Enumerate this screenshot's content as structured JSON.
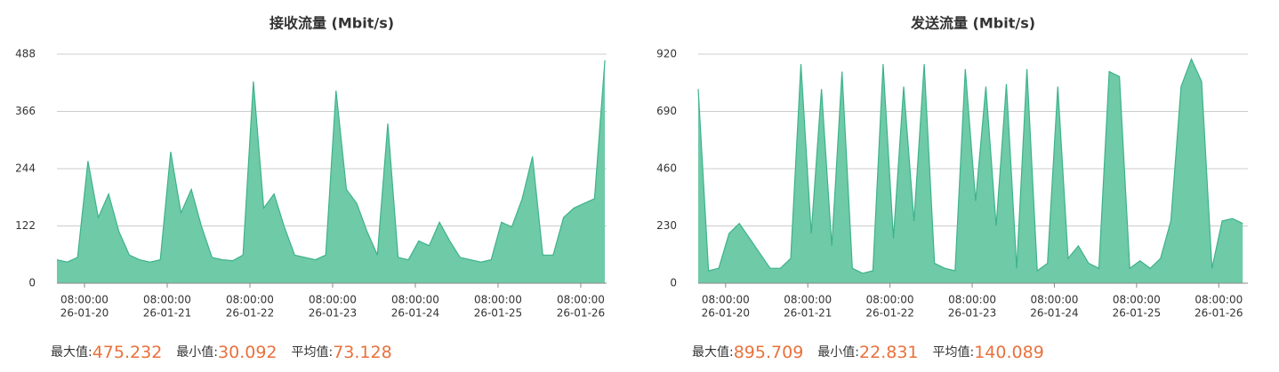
{
  "chart_data": [
    {
      "type": "area",
      "title": "接收流量 (Mbit/s)",
      "color": "#3db38a",
      "fill_color": "#6fcaa8",
      "x": [
        "26-01-20 00:00:00",
        "26-01-20 03:00:00",
        "26-01-20 06:00:00",
        "26-01-20 09:00:00",
        "26-01-20 12:00:00",
        "26-01-20 15:00:00",
        "26-01-20 18:00:00",
        "26-01-20 21:00:00",
        "26-01-21 00:00:00",
        "26-01-21 03:00:00",
        "26-01-21 06:00:00",
        "26-01-21 09:00:00",
        "26-01-21 12:00:00",
        "26-01-21 15:00:00",
        "26-01-21 18:00:00",
        "26-01-21 21:00:00",
        "26-01-22 00:00:00",
        "26-01-22 03:00:00",
        "26-01-22 06:00:00",
        "26-01-22 09:00:00",
        "26-01-22 12:00:00",
        "26-01-22 15:00:00",
        "26-01-22 18:00:00",
        "26-01-22 21:00:00",
        "26-01-23 00:00:00",
        "26-01-23 03:00:00",
        "26-01-23 06:00:00",
        "26-01-23 09:00:00",
        "26-01-23 12:00:00",
        "26-01-23 15:00:00",
        "26-01-23 18:00:00",
        "26-01-23 21:00:00",
        "26-01-24 00:00:00",
        "26-01-24 03:00:00",
        "26-01-24 06:00:00",
        "26-01-24 09:00:00",
        "26-01-24 12:00:00",
        "26-01-24 15:00:00",
        "26-01-24 18:00:00",
        "26-01-24 21:00:00",
        "26-01-25 00:00:00",
        "26-01-25 03:00:00",
        "26-01-25 06:00:00",
        "26-01-25 09:00:00",
        "26-01-25 12:00:00",
        "26-01-25 15:00:00",
        "26-01-25 18:00:00",
        "26-01-25 21:00:00",
        "26-01-26 00:00:00",
        "26-01-26 03:00:00",
        "26-01-26 06:00:00",
        "26-01-26 09:00:00",
        "26-01-26 12:00:00",
        "26-01-26 15:00:00"
      ],
      "values": [
        50,
        45,
        55,
        260,
        140,
        190,
        110,
        60,
        50,
        45,
        50,
        280,
        150,
        200,
        120,
        55,
        50,
        48,
        60,
        430,
        160,
        190,
        120,
        60,
        55,
        50,
        60,
        410,
        200,
        170,
        110,
        60,
        340,
        55,
        50,
        90,
        80,
        130,
        90,
        55,
        50,
        45,
        50,
        130,
        120,
        180,
        270,
        60,
        60,
        140,
        160,
        170,
        180,
        475
      ],
      "xlim": [
        "26-01-20 00:00:00",
        "26-01-26 15:30:00"
      ],
      "xticks": [
        {
          "value": "26-01-20 08:00:00",
          "label": [
            "08:00:00",
            "26-01-20"
          ]
        },
        {
          "value": "26-01-21 08:00:00",
          "label": [
            "08:00:00",
            "26-01-21"
          ]
        },
        {
          "value": "26-01-22 08:00:00",
          "label": [
            "08:00:00",
            "26-01-22"
          ]
        },
        {
          "value": "26-01-23 08:00:00",
          "label": [
            "08:00:00",
            "26-01-23"
          ]
        },
        {
          "value": "26-01-24 08:00:00",
          "label": [
            "08:00:00",
            "26-01-24"
          ]
        },
        {
          "value": "26-01-25 08:00:00",
          "label": [
            "08:00:00",
            "26-01-25"
          ]
        },
        {
          "value": "26-01-26 08:00:00",
          "label": [
            "08:00:00",
            "26-01-26"
          ]
        }
      ],
      "ylim": [
        0,
        488
      ],
      "yticks": [
        0,
        122,
        244,
        366,
        488
      ],
      "grid": true,
      "stats": [
        {
          "label": "最大值:",
          "value": 475.232
        },
        {
          "label": "最小值:",
          "value": 30.092
        },
        {
          "label": "平均值:",
          "value": 73.128
        }
      ]
    },
    {
      "type": "area",
      "title": "发送流量 (Mbit/s)",
      "color": "#3db38a",
      "fill_color": "#6fcaa8",
      "x": [
        "26-01-20 00:00:00",
        "26-01-20 03:00:00",
        "26-01-20 06:00:00",
        "26-01-20 09:00:00",
        "26-01-20 12:00:00",
        "26-01-20 15:00:00",
        "26-01-20 18:00:00",
        "26-01-20 21:00:00",
        "26-01-21 00:00:00",
        "26-01-21 03:00:00",
        "26-01-21 06:00:00",
        "26-01-21 09:00:00",
        "26-01-21 12:00:00",
        "26-01-21 15:00:00",
        "26-01-21 18:00:00",
        "26-01-21 21:00:00",
        "26-01-22 00:00:00",
        "26-01-22 03:00:00",
        "26-01-22 06:00:00",
        "26-01-22 09:00:00",
        "26-01-22 12:00:00",
        "26-01-22 15:00:00",
        "26-01-22 18:00:00",
        "26-01-22 21:00:00",
        "26-01-23 00:00:00",
        "26-01-23 03:00:00",
        "26-01-23 06:00:00",
        "26-01-23 09:00:00",
        "26-01-23 12:00:00",
        "26-01-23 15:00:00",
        "26-01-23 18:00:00",
        "26-01-23 21:00:00",
        "26-01-24 00:00:00",
        "26-01-24 03:00:00",
        "26-01-24 06:00:00",
        "26-01-24 09:00:00",
        "26-01-24 12:00:00",
        "26-01-24 15:00:00",
        "26-01-24 18:00:00",
        "26-01-24 21:00:00",
        "26-01-25 00:00:00",
        "26-01-25 03:00:00",
        "26-01-25 06:00:00",
        "26-01-25 09:00:00",
        "26-01-25 12:00:00",
        "26-01-25 15:00:00",
        "26-01-25 18:00:00",
        "26-01-25 21:00:00",
        "26-01-26 00:00:00",
        "26-01-26 03:00:00",
        "26-01-26 06:00:00",
        "26-01-26 09:00:00",
        "26-01-26 12:00:00",
        "26-01-26 15:00:00"
      ],
      "values": [
        780,
        50,
        60,
        200,
        240,
        180,
        120,
        60,
        60,
        100,
        880,
        200,
        780,
        150,
        850,
        60,
        40,
        50,
        880,
        180,
        790,
        250,
        880,
        80,
        60,
        50,
        860,
        330,
        790,
        230,
        800,
        60,
        860,
        50,
        80,
        790,
        100,
        150,
        80,
        60,
        850,
        830,
        60,
        90,
        60,
        100,
        250,
        790,
        900,
        810,
        60,
        250,
        260,
        240
      ],
      "xlim": [
        "26-01-20 00:00:00",
        "26-01-26 16:30:00"
      ],
      "xticks": [
        {
          "value": "26-01-20 08:00:00",
          "label": [
            "08:00:00",
            "26-01-20"
          ]
        },
        {
          "value": "26-01-21 08:00:00",
          "label": [
            "08:00:00",
            "26-01-21"
          ]
        },
        {
          "value": "26-01-22 08:00:00",
          "label": [
            "08:00:00",
            "26-01-22"
          ]
        },
        {
          "value": "26-01-23 08:00:00",
          "label": [
            "08:00:00",
            "26-01-23"
          ]
        },
        {
          "value": "26-01-24 08:00:00",
          "label": [
            "08:00:00",
            "26-01-24"
          ]
        },
        {
          "value": "26-01-25 08:00:00",
          "label": [
            "08:00:00",
            "26-01-25"
          ]
        },
        {
          "value": "26-01-26 08:00:00",
          "label": [
            "08:00:00",
            "26-01-26"
          ]
        }
      ],
      "ylim": [
        0,
        920
      ],
      "yticks": [
        0,
        230,
        460,
        690,
        920
      ],
      "grid": true,
      "stats": [
        {
          "label": "最大值:",
          "value": 895.709
        },
        {
          "label": "最小值:",
          "value": 22.831
        },
        {
          "label": "平均值:",
          "value": 140.089
        }
      ]
    }
  ]
}
